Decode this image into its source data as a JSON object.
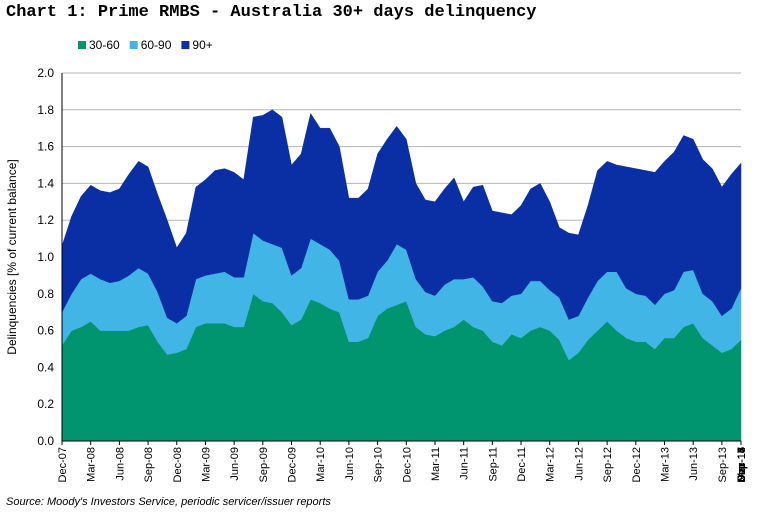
{
  "chart_data": {
    "type": "area",
    "stacked": true,
    "title": "Chart 1: Prime RMBS - Australia 30+ days delinquency",
    "ylabel": "Delinquencies [% of current balance]",
    "xlabel": "",
    "ylim": [
      0,
      2.0
    ],
    "yticks": [
      "0.0",
      "0.2",
      "0.4",
      "0.6",
      "0.8",
      "1.0",
      "1.2",
      "1.4",
      "1.6",
      "1.8",
      "2.0"
    ],
    "grid": true,
    "legend_position": "top-left",
    "x_tick_labels": [
      "Dec-07",
      "Mar-08",
      "Jun-08",
      "Sep-08",
      "Dec-08",
      "Mar-09",
      "Jun-09",
      "Sep-09",
      "Dec-09",
      "Mar-10",
      "Jun-10",
      "Sep-10",
      "Dec-10",
      "Mar-11",
      "Jun-11",
      "Sep-11",
      "Dec-11",
      "Mar-12",
      "Jun-12",
      "Sep-12",
      "Dec-12",
      "Mar-13",
      "Jun-13",
      "Sep-13",
      "Dec-13",
      "Mar-14",
      "Jun-14",
      "Sep-14",
      "Dec-14",
      "Mar-15",
      "Jun-15",
      "Sep-15",
      "Dec-15",
      "Mar-16",
      "Jun-16",
      "Sep-16",
      "Dec-16",
      "Mar-17",
      "Jun-17",
      "Sep-17",
      "Dec-17"
    ],
    "source": "Source: Moody's Investors Service, periodic servicer/issuer reports",
    "series": [
      {
        "name": "30-60",
        "color": "#00956F",
        "values": [
          0.52,
          0.6,
          0.62,
          0.65,
          0.6,
          0.6,
          0.6,
          0.6,
          0.62,
          0.63,
          0.54,
          0.47,
          0.48,
          0.5,
          0.62,
          0.64,
          0.64,
          0.64,
          0.62,
          0.62,
          0.8,
          0.76,
          0.75,
          0.7,
          0.63,
          0.66,
          0.77,
          0.75,
          0.72,
          0.7,
          0.54,
          0.54,
          0.56,
          0.68,
          0.72,
          0.74,
          0.76,
          0.62,
          0.58,
          0.57,
          0.6,
          0.62,
          0.66,
          0.62,
          0.6,
          0.54,
          0.52,
          0.58,
          0.56,
          0.6,
          0.62,
          0.6,
          0.55,
          0.44,
          0.48,
          0.55,
          0.6,
          0.65,
          0.6,
          0.56,
          0.54,
          0.54,
          0.5,
          0.56,
          0.56,
          0.62,
          0.64,
          0.56,
          0.52,
          0.48,
          0.5,
          0.55
        ]
      },
      {
        "name": "60-90",
        "color": "#41B6E6",
        "values": [
          0.18,
          0.2,
          0.26,
          0.26,
          0.28,
          0.26,
          0.27,
          0.3,
          0.32,
          0.28,
          0.27,
          0.2,
          0.16,
          0.18,
          0.26,
          0.26,
          0.27,
          0.28,
          0.27,
          0.27,
          0.33,
          0.33,
          0.32,
          0.35,
          0.27,
          0.28,
          0.33,
          0.32,
          0.32,
          0.28,
          0.23,
          0.23,
          0.23,
          0.24,
          0.26,
          0.33,
          0.28,
          0.26,
          0.23,
          0.22,
          0.25,
          0.26,
          0.22,
          0.27,
          0.24,
          0.22,
          0.23,
          0.21,
          0.24,
          0.27,
          0.25,
          0.22,
          0.23,
          0.22,
          0.2,
          0.23,
          0.27,
          0.27,
          0.32,
          0.27,
          0.26,
          0.25,
          0.24,
          0.24,
          0.26,
          0.3,
          0.29,
          0.24,
          0.24,
          0.2,
          0.22,
          0.28
        ]
      },
      {
        "name": "90+",
        "color": "#0A2FA5",
        "values": [
          0.36,
          0.42,
          0.45,
          0.48,
          0.48,
          0.49,
          0.5,
          0.55,
          0.58,
          0.58,
          0.53,
          0.53,
          0.41,
          0.45,
          0.5,
          0.52,
          0.56,
          0.56,
          0.57,
          0.53,
          0.63,
          0.68,
          0.73,
          0.71,
          0.6,
          0.62,
          0.68,
          0.63,
          0.66,
          0.62,
          0.55,
          0.55,
          0.58,
          0.64,
          0.66,
          0.64,
          0.6,
          0.52,
          0.5,
          0.51,
          0.52,
          0.55,
          0.42,
          0.49,
          0.55,
          0.49,
          0.49,
          0.44,
          0.48,
          0.5,
          0.53,
          0.48,
          0.38,
          0.47,
          0.44,
          0.5,
          0.6,
          0.6,
          0.58,
          0.66,
          0.68,
          0.68,
          0.72,
          0.72,
          0.75,
          0.74,
          0.71,
          0.73,
          0.72,
          0.7,
          0.73,
          0.68
        ]
      }
    ]
  }
}
